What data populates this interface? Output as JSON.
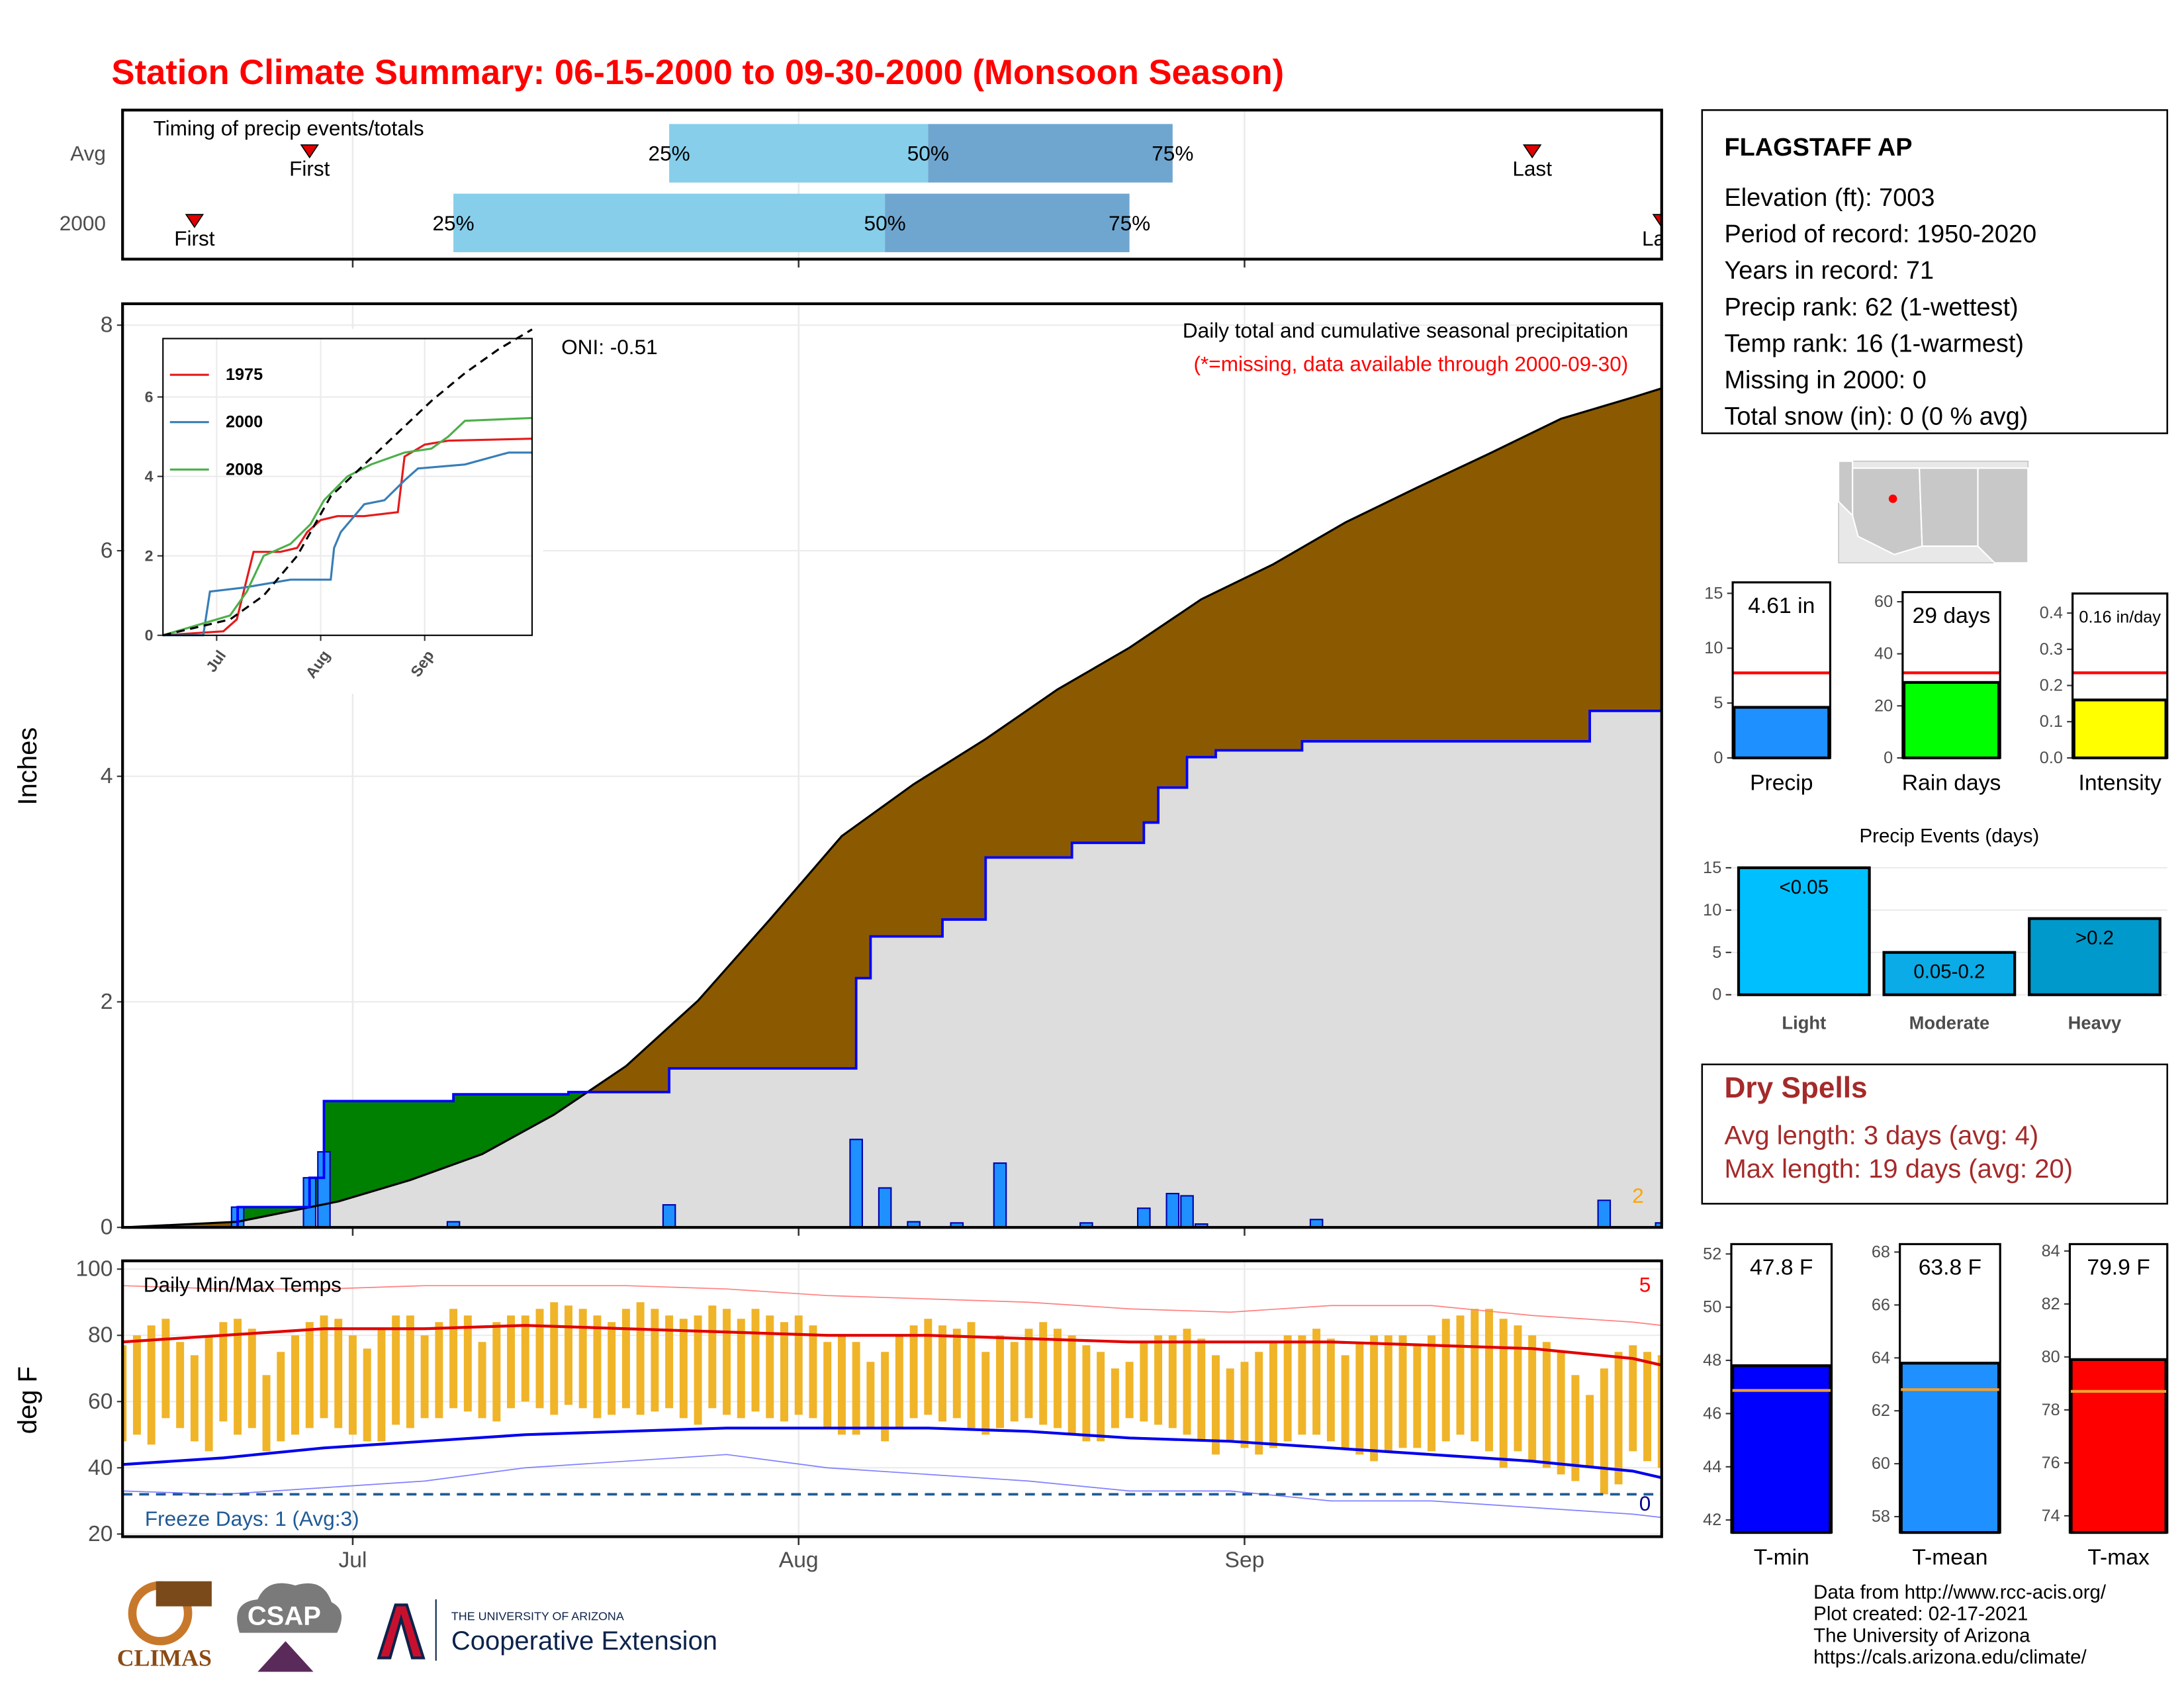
{
  "title": "Station Climate Summary: 06-15-2000 to 09-30-2000 (Monsoon Season)",
  "chart_data": [
    {
      "type": "timing",
      "title": "Timing of precip events/totals",
      "categories": [
        "Avg",
        "2000"
      ],
      "first": [
        13,
        5
      ],
      "q25": [
        38,
        23
      ],
      "q50": [
        56,
        53
      ],
      "q75": [
        73,
        70
      ],
      "last": [
        98,
        107
      ],
      "first_label": "First",
      "last_label": "Last",
      "quartile_labels": [
        "25%",
        "50%",
        "75%"
      ],
      "colors": [
        "#87ceeb",
        "#6fa6cf"
      ],
      "marker_color": "#e00000",
      "xlim": [
        0,
        107
      ]
    },
    {
      "type": "precip",
      "title": "Daily total and cumulative seasonal precipitation",
      "subtitle": "(*=missing, data available through 2000-09-30)",
      "annotation": "ONI: -0.51",
      "count_label": 2,
      "ylabel": "Inches",
      "xlim": [
        0,
        107
      ],
      "ylim": [
        0,
        8.19
      ],
      "yticks": [
        0,
        2,
        4,
        6,
        8
      ],
      "grid": true,
      "average": {
        "x": [
          0,
          8,
          15,
          20,
          25,
          30,
          35,
          40,
          45,
          50,
          55,
          60,
          65,
          70,
          75,
          80,
          85,
          90,
          95,
          100,
          105,
          107
        ],
        "values": [
          0,
          0.05,
          0.23,
          0.42,
          0.65,
          1.0,
          1.43,
          2.01,
          2.73,
          3.47,
          3.93,
          4.33,
          4.77,
          5.14,
          5.57,
          5.88,
          6.25,
          6.56,
          6.86,
          7.17,
          7.36,
          7.44
        ],
        "color": "#000000",
        "fill": "#8b5a00"
      },
      "observed": {
        "x": [
          0,
          8,
          13,
          14,
          23,
          31,
          38,
          51,
          52,
          57,
          60,
          66,
          71,
          72,
          74,
          76,
          82,
          102,
          107
        ],
        "values": [
          0,
          0.18,
          0.44,
          1.12,
          1.18,
          1.2,
          1.41,
          2.21,
          2.58,
          2.73,
          3.28,
          3.41,
          3.59,
          3.9,
          4.17,
          4.23,
          4.31,
          4.58,
          4.61
        ],
        "color": "#0000ff",
        "fill": "#dddddd",
        "above_fill": "#008000",
        "step": true
      },
      "daily": {
        "x": [
          8,
          13,
          14,
          23,
          38,
          51,
          53,
          55,
          58,
          61,
          67,
          71,
          73,
          74,
          75,
          83,
          103,
          107
        ],
        "values": [
          0.18,
          0.44,
          0.67,
          0.05,
          0.2,
          0.78,
          0.35,
          0.05,
          0.04,
          0.57,
          0.04,
          0.17,
          0.3,
          0.28,
          0.03,
          0.07,
          0.24,
          0.04
        ],
        "color": "#1e90ff"
      }
    },
    {
      "type": "line",
      "xlim": [
        0,
        110
      ],
      "ylim": [
        0,
        7.47
      ],
      "yticks": [
        0,
        2,
        4,
        6
      ],
      "grid": true,
      "xticks": [
        {
          "value": 16,
          "label": "Jul"
        },
        {
          "value": 47,
          "label": "Aug"
        },
        {
          "value": 78,
          "label": "Sep"
        }
      ],
      "series": [
        {
          "name": "1975",
          "color": "#e41a1c",
          "x": [
            0,
            18,
            22,
            27,
            35,
            40,
            43,
            47,
            52,
            60,
            70,
            72,
            78,
            85,
            110
          ],
          "values": [
            0,
            0.1,
            0.4,
            2.1,
            2.1,
            2.2,
            2.6,
            2.9,
            3.0,
            3.0,
            3.1,
            4.5,
            4.8,
            4.9,
            4.95
          ]
        },
        {
          "name": "2000",
          "color": "#377eb8",
          "x": [
            0,
            12,
            14,
            24,
            38,
            50,
            51,
            53,
            60,
            66,
            72,
            76,
            90,
            103,
            110
          ],
          "values": [
            0,
            0,
            1.1,
            1.2,
            1.4,
            1.4,
            2.2,
            2.6,
            3.3,
            3.4,
            3.9,
            4.2,
            4.3,
            4.6,
            4.6
          ]
        },
        {
          "name": "2008",
          "color": "#4daf4a",
          "x": [
            0,
            20,
            25,
            30,
            38,
            44,
            48,
            55,
            62,
            72,
            80,
            85,
            90,
            110
          ],
          "values": [
            0,
            0.5,
            1.1,
            2.0,
            2.3,
            2.8,
            3.4,
            4.0,
            4.3,
            4.6,
            4.7,
            5.0,
            5.4,
            5.47
          ]
        },
        {
          "color": "#000000",
          "dash": true,
          "x": [
            0,
            20,
            30,
            40,
            50,
            60,
            70,
            80,
            90,
            100,
            110
          ],
          "values": [
            0,
            0.4,
            1.0,
            2.0,
            3.5,
            4.3,
            5.1,
            5.9,
            6.6,
            7.2,
            7.7
          ]
        }
      ]
    },
    {
      "type": "temperature",
      "title": "Daily Min/Max Temps",
      "annotation": "Freeze Days: 1 (Avg:3)",
      "ylabel": "deg F",
      "xlim": [
        0,
        107
      ],
      "ylim": [
        19.2,
        102.5
      ],
      "yticks": [
        20,
        40,
        60,
        80,
        100
      ],
      "grid": true,
      "xticks": [
        {
          "value": 16,
          "label": "Jul"
        },
        {
          "value": 47,
          "label": "Aug"
        },
        {
          "value": 78,
          "label": "Sep"
        }
      ],
      "freeze_line": 32,
      "freeze_color": "#1f5a96",
      "record_high_count": 5,
      "record_low_count": 0,
      "daily": {
        "color": "#f0b429",
        "high": [
          77,
          80,
          83,
          85,
          78,
          74,
          80,
          84,
          85,
          82,
          68,
          75,
          80,
          84,
          86,
          85,
          80,
          76,
          82,
          86,
          86,
          80,
          84,
          88,
          86,
          78,
          84,
          86,
          86,
          88,
          90,
          89,
          88,
          86,
          84,
          88,
          90,
          88,
          86,
          85,
          86,
          89,
          88,
          85,
          88,
          86,
          84,
          86,
          83,
          78,
          80,
          78,
          72,
          75,
          80,
          83,
          85,
          83,
          82,
          84,
          75,
          80,
          78,
          82,
          84,
          82,
          80,
          77,
          75,
          70,
          72,
          78,
          80,
          80,
          82,
          79,
          74,
          70,
          72,
          75,
          78,
          80,
          80,
          82,
          79,
          74,
          78,
          80,
          80,
          80,
          77,
          80,
          85,
          86,
          88,
          88,
          85,
          83,
          80,
          78,
          75,
          68,
          62,
          70,
          75,
          77,
          75,
          74
        ],
        "low": [
          48,
          50,
          47,
          55,
          52,
          48,
          45,
          54,
          50,
          52,
          45,
          48,
          50,
          52,
          55,
          52,
          50,
          48,
          48,
          53,
          52,
          55,
          55,
          58,
          57,
          55,
          54,
          58,
          60,
          58,
          56,
          59,
          58,
          55,
          56,
          58,
          56,
          57,
          58,
          55,
          53,
          58,
          56,
          55,
          57,
          55,
          54,
          56,
          55,
          52,
          50,
          50,
          52,
          48,
          52,
          55,
          56,
          54,
          55,
          52,
          50,
          52,
          54,
          55,
          53,
          52,
          50,
          48,
          48,
          52,
          55,
          54,
          53,
          52,
          50,
          48,
          44,
          48,
          46,
          44,
          46,
          48,
          50,
          50,
          48,
          46,
          44,
          42,
          45,
          46,
          46,
          45,
          48,
          50,
          48,
          45,
          40,
          45,
          42,
          40,
          38,
          36,
          40,
          32,
          35,
          45,
          42,
          40
        ]
      },
      "normals": {
        "x": [
          0,
          7,
          14,
          21,
          28,
          35,
          42,
          49,
          56,
          63,
          70,
          77,
          84,
          91,
          98,
          105,
          107
        ],
        "series": [
          {
            "color": "#ff8080",
            "width": 0.8,
            "values": [
              95,
              94,
              94,
              95,
              95,
              95,
              94,
              92,
              91,
              90,
              88,
              87,
              89,
              89,
              86,
              84,
              83
            ]
          },
          {
            "color": "#8080ff",
            "width": 0.8,
            "values": [
              33,
              32,
              34,
              36,
              40,
              42,
              44,
              40,
              38,
              36,
              33,
              33,
              30,
              30,
              28,
              26,
              25
            ]
          },
          {
            "color": "#e00000",
            "width": 2,
            "values": [
              78,
              80,
              82,
              82,
              83,
              82,
              81,
              80,
              80,
              79,
              78,
              78,
              78,
              77,
              76,
              73,
              71
            ]
          },
          {
            "color": "#0000ee",
            "width": 2,
            "values": [
              41,
              43,
              46,
              48,
              50,
              51,
              52,
              52,
              52,
              51,
              49,
              48,
              46,
              44,
              42,
              39,
              37
            ]
          }
        ]
      }
    },
    {
      "type": "summary-bar",
      "categories": [
        "Precip"
      ],
      "values": [
        4.61
      ],
      "value_labels": [
        "4.61 in"
      ],
      "average": 7.75,
      "color": "#1e90ff",
      "average_color": "#ff0000",
      "ylim": [
        0,
        16
      ],
      "yticks": [
        0,
        5,
        10,
        15
      ]
    },
    {
      "type": "summary-bar",
      "categories": [
        "Rain days"
      ],
      "values": [
        29
      ],
      "value_labels": [
        "29 days"
      ],
      "average": 32.7,
      "color": "#00ff00",
      "average_color": "#ff0000",
      "ylim": [
        0,
        63.7
      ],
      "yticks": [
        0,
        20,
        40,
        60
      ]
    },
    {
      "type": "summary-bar",
      "categories": [
        "Intensity"
      ],
      "values": [
        0.16
      ],
      "value_labels": [
        "0.16 in/day"
      ],
      "average": 0.235,
      "color": "#ffff00",
      "average_color": "#ff0000",
      "ylim": [
        0,
        0.454
      ],
      "yticks": [
        {
          "value": 0,
          "label": "0.0"
        },
        0.1,
        0.2,
        0.3,
        0.4
      ]
    },
    {
      "type": "bar",
      "title": "Precip Events (days)",
      "categories": [
        "Light",
        "Moderate",
        "Heavy"
      ],
      "values": [
        15,
        5,
        9
      ],
      "bar_labels": [
        "<0.05",
        "0.05-0.2",
        ">0.2"
      ],
      "colors": [
        "#00bfff",
        "#0aabe6",
        "#0099cc"
      ],
      "ylim": [
        0,
        15.8
      ],
      "yticks": [
        0,
        5,
        10,
        15
      ],
      "grid": true
    },
    {
      "type": "summary-bar",
      "categories": [
        "T-min"
      ],
      "values": [
        47.8
      ],
      "value_labels": [
        "47.8 F"
      ],
      "average": 46.87,
      "color": "#0000ff",
      "average_color": "#f0a030",
      "ylim": [
        41.53,
        52.37
      ],
      "yticks": [
        42,
        44,
        46,
        48,
        50,
        52
      ]
    },
    {
      "type": "summary-bar",
      "categories": [
        "T-mean"
      ],
      "values": [
        63.8
      ],
      "value_labels": [
        "63.8 F"
      ],
      "average": 62.8,
      "color": "#1e90ff",
      "average_color": "#f0a030",
      "ylim": [
        57.4,
        68.3
      ],
      "yticks": [
        58,
        60,
        62,
        64,
        66,
        68
      ]
    },
    {
      "type": "summary-bar",
      "categories": [
        "T-max"
      ],
      "values": [
        79.9
      ],
      "value_labels": [
        "79.9 F"
      ],
      "average": 78.7,
      "color": "#ff0000",
      "average_color": "#f0a030",
      "ylim": [
        73.37,
        84.26
      ],
      "yticks": [
        74,
        76,
        78,
        80,
        82,
        84
      ]
    }
  ],
  "info": {
    "station": "FLAGSTAFF AP",
    "lines": [
      "Elevation (ft): 7003",
      "Period of record: 1950-2020",
      "Years in record: 71",
      "Precip rank: 62 (1-wettest)",
      "Temp rank: 16 (1-warmest)",
      "Missing in 2000: 0",
      "Total snow (in): 0 (0 % avg)"
    ]
  },
  "dry_spells": {
    "title": "Dry Spells",
    "lines": [
      "Avg length: 3 days (avg: 4)",
      "Max length: 19 days (avg: 20)"
    ]
  },
  "footer": [
    "Data from http://www.rcc-acis.org/",
    "Plot created: 02-17-2021",
    "The University of Arizona",
    "https://cals.arizona.edu/climate/"
  ],
  "logos": {
    "climas": "CLIMAS",
    "csap": "CSAP",
    "university": "THE UNIVERSITY OF ARIZONA",
    "extension": "Cooperative Extension"
  }
}
